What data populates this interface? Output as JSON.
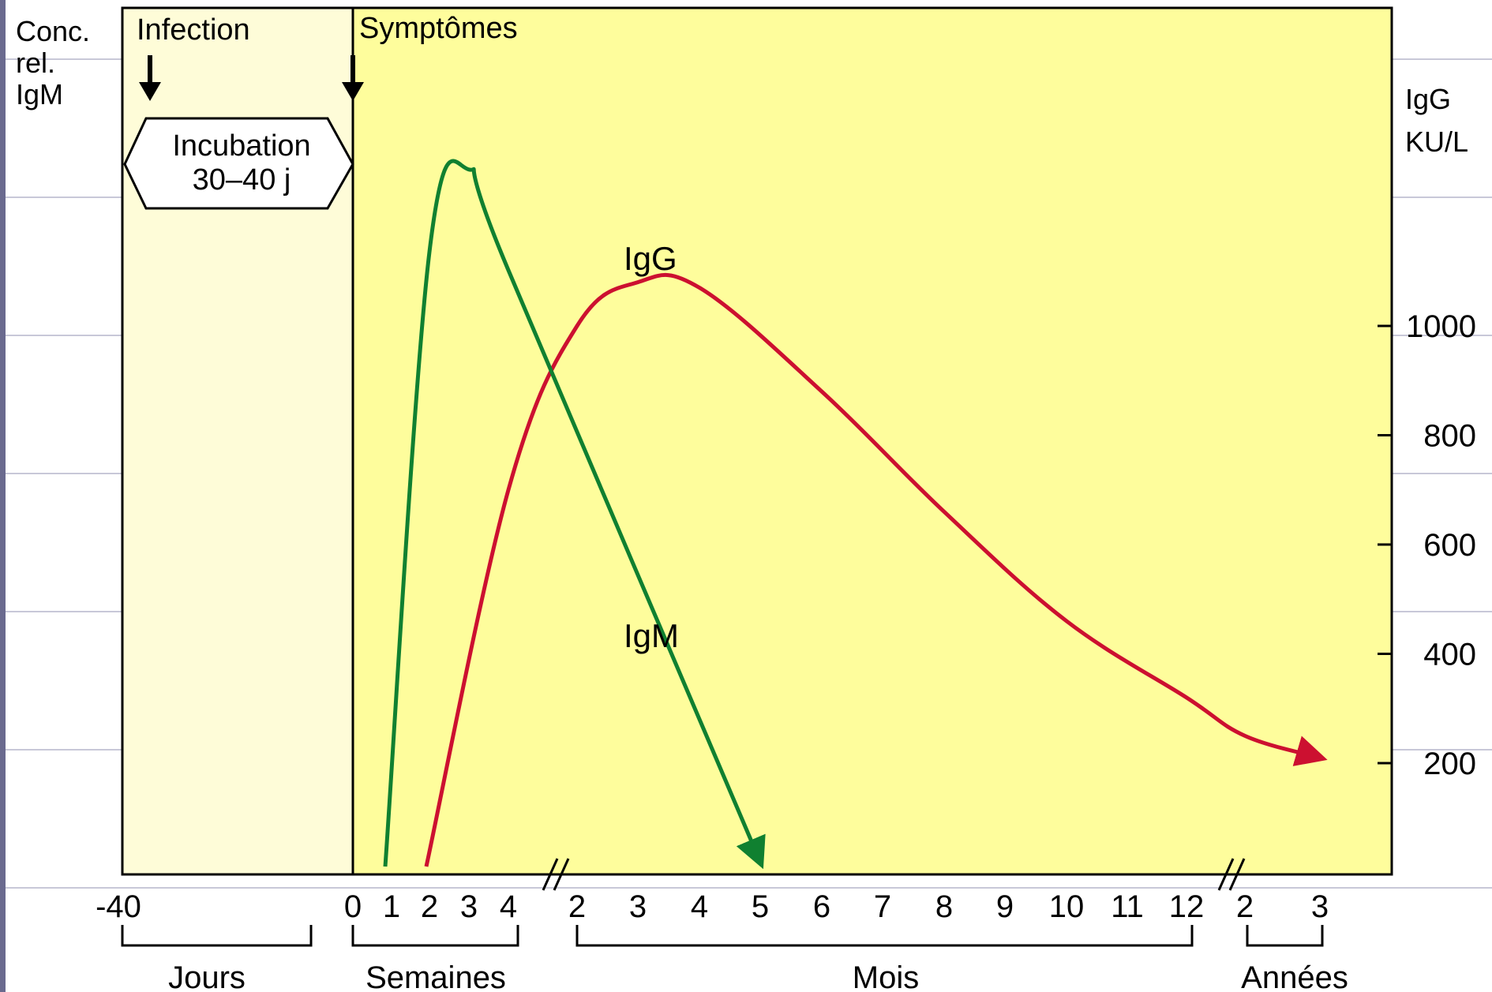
{
  "chart_data": {
    "type": "line",
    "title": "",
    "left_axis_label": [
      "Conc.",
      "rel.",
      "IgM"
    ],
    "right_axis_label": [
      "IgG",
      "KU/L"
    ],
    "right_axis_ticks": [
      200,
      400,
      600,
      800,
      1000
    ],
    "right_axis_range": [
      0,
      1400
    ],
    "annotations": {
      "infection": "Infection",
      "symptoms": "Symptômes",
      "incubation_line1": "Incubation",
      "incubation_line2": "30–40 j"
    },
    "x_segments": [
      {
        "unit": "Jours",
        "ticks": [
          "-40"
        ]
      },
      {
        "unit": "Semaines",
        "ticks": [
          "0",
          "1",
          "2",
          "3",
          "4"
        ]
      },
      {
        "unit": "Mois",
        "ticks": [
          "2",
          "3",
          "4",
          "5",
          "6",
          "7",
          "8",
          "9",
          "10",
          "11",
          "12"
        ]
      },
      {
        "unit": "Années",
        "ticks": [
          "2",
          "3"
        ]
      }
    ],
    "series": [
      {
        "name": "IgG",
        "color": "#cc1030",
        "y_units": "KU/L",
        "points": [
          {
            "x": "2 semaines",
            "y": 10
          },
          {
            "x": "4 semaines",
            "y": 700
          },
          {
            "x": "2 mois",
            "y": 1000
          },
          {
            "x": "3 mois",
            "y": 1080
          },
          {
            "x": "4 mois",
            "y": 1070
          },
          {
            "x": "6 mois",
            "y": 880
          },
          {
            "x": "8 mois",
            "y": 660
          },
          {
            "x": "10 mois",
            "y": 460
          },
          {
            "x": "12 mois",
            "y": 320
          },
          {
            "x": "2 ans",
            "y": 250
          },
          {
            "x": "3 ans",
            "y": 210
          }
        ]
      },
      {
        "name": "IgM",
        "color": "#108030",
        "y_units": "relative",
        "points": [
          {
            "x": "1 semaine",
            "y": 0.01
          },
          {
            "x": "2 semaines",
            "y": 0.68
          },
          {
            "x": "3 semaines",
            "y": 0.77
          },
          {
            "x": "4 semaines",
            "y": 0.66
          },
          {
            "x": "5 mois",
            "y": 0.0
          }
        ]
      }
    ],
    "colors": {
      "incubation_background": "#fefcd8",
      "plot_background": "#fefd9c",
      "gridline": "#c8c8d8",
      "left_strip": "#6a6a8e"
    }
  }
}
